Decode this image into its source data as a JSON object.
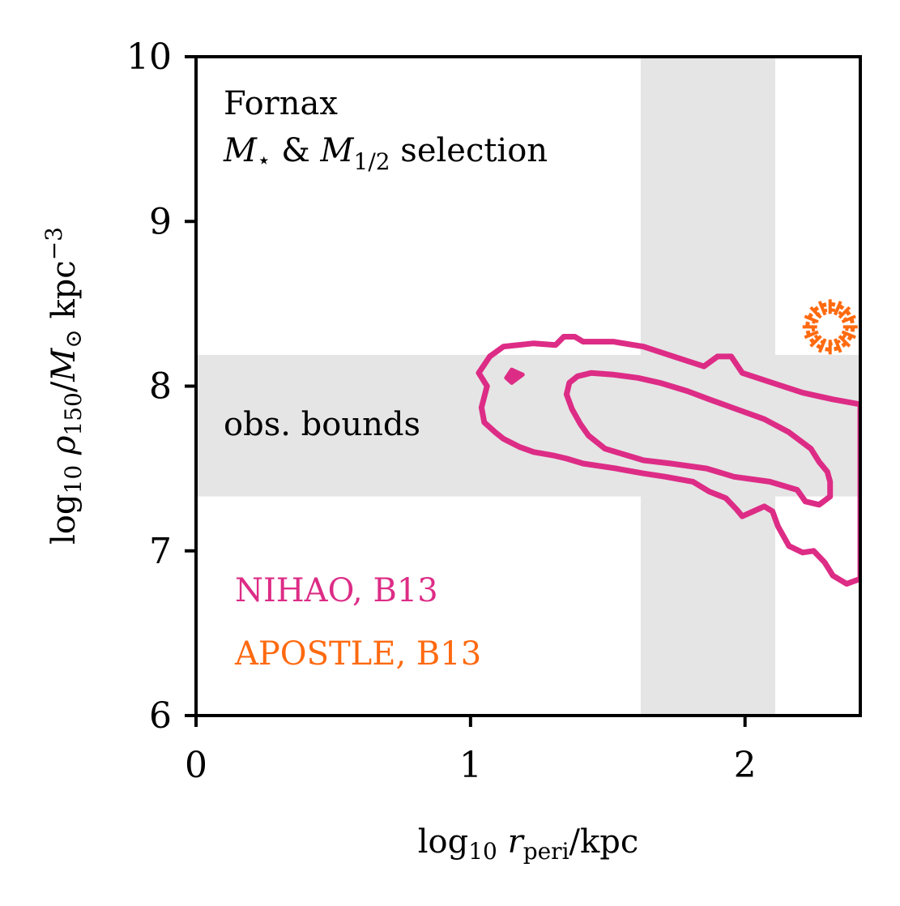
{
  "chart_data": {
    "type": "contour",
    "panel_title": [
      "Fornax"
    ],
    "selection_label": {
      "m1": "M",
      "star": "⋆",
      "amp": " & ",
      "m2": "M",
      "sub": "1/2",
      "rest": " selection"
    },
    "xlabel": {
      "pre": "log",
      "sub": "10",
      "var": "r",
      "varsub": "peri",
      "post": "/kpc"
    },
    "ylabel": {
      "pre": "log",
      "sub": "10",
      "var": "ρ",
      "varsub": "150",
      "mid": "/",
      "m": "M",
      "sun": "⊙",
      "post": " kpc",
      "sup": "−3"
    },
    "xlim": [
      0,
      2.42
    ],
    "ylim": [
      6,
      10
    ],
    "xticks": [
      0,
      1,
      2
    ],
    "xtick_labels": [
      "0",
      "1",
      "2"
    ],
    "yticks": [
      6,
      7,
      8,
      9,
      10
    ],
    "ytick_labels": [
      "6",
      "7",
      "8",
      "9",
      "10"
    ],
    "obs_bounds": {
      "label": "obs. bounds",
      "y_range": [
        7.33,
        8.19
      ],
      "x_range": [
        1.62,
        2.11
      ],
      "color": "#e5e5e5",
      "label_color": "#888888"
    },
    "series": [
      {
        "name": "NIHAO, B13",
        "color": "#dd2c86",
        "contours": [
          [
            [
              1.06,
              8.0
            ],
            [
              1.03,
              8.08
            ],
            [
              1.07,
              8.18
            ],
            [
              1.12,
              8.24
            ],
            [
              1.23,
              8.26
            ],
            [
              1.31,
              8.25
            ],
            [
              1.34,
              8.3
            ],
            [
              1.38,
              8.3
            ],
            [
              1.41,
              8.27
            ],
            [
              1.52,
              8.27
            ],
            [
              1.63,
              8.24
            ],
            [
              1.74,
              8.18
            ],
            [
              1.85,
              8.12
            ],
            [
              1.9,
              8.18
            ],
            [
              1.95,
              8.18
            ],
            [
              1.99,
              8.08
            ],
            [
              2.1,
              8.02
            ],
            [
              2.21,
              7.96
            ],
            [
              2.32,
              7.92
            ],
            [
              2.42,
              7.89
            ],
            [
              2.42,
              6.83
            ],
            [
              2.37,
              6.8
            ],
            [
              2.32,
              6.85
            ],
            [
              2.29,
              6.93
            ],
            [
              2.25,
              7.0
            ],
            [
              2.21,
              6.99
            ],
            [
              2.16,
              7.03
            ],
            [
              2.12,
              7.15
            ],
            [
              2.1,
              7.24
            ],
            [
              2.07,
              7.27
            ],
            [
              2.03,
              7.24
            ],
            [
              1.99,
              7.21
            ],
            [
              1.97,
              7.25
            ],
            [
              1.93,
              7.32
            ],
            [
              1.87,
              7.36
            ],
            [
              1.81,
              7.42
            ],
            [
              1.71,
              7.45
            ],
            [
              1.63,
              7.47
            ],
            [
              1.53,
              7.5
            ],
            [
              1.41,
              7.53
            ],
            [
              1.35,
              7.56
            ],
            [
              1.3,
              7.58
            ],
            [
              1.23,
              7.6
            ],
            [
              1.18,
              7.63
            ],
            [
              1.12,
              7.68
            ],
            [
              1.09,
              7.72
            ],
            [
              1.05,
              7.78
            ],
            [
              1.04,
              7.87
            ],
            [
              1.06,
              8.0
            ]
          ],
          [
            [
              1.36,
              8.02
            ],
            [
              1.39,
              8.06
            ],
            [
              1.44,
              8.08
            ],
            [
              1.52,
              8.07
            ],
            [
              1.61,
              8.05
            ],
            [
              1.69,
              8.02
            ],
            [
              1.79,
              7.97
            ],
            [
              1.87,
              7.92
            ],
            [
              1.97,
              7.86
            ],
            [
              2.07,
              7.8
            ],
            [
              2.16,
              7.72
            ],
            [
              2.24,
              7.62
            ],
            [
              2.27,
              7.54
            ],
            [
              2.3,
              7.48
            ],
            [
              2.31,
              7.42
            ],
            [
              2.31,
              7.33
            ],
            [
              2.27,
              7.28
            ],
            [
              2.22,
              7.3
            ],
            [
              2.19,
              7.37
            ],
            [
              2.09,
              7.42
            ],
            [
              1.96,
              7.45
            ],
            [
              1.86,
              7.5
            ],
            [
              1.73,
              7.53
            ],
            [
              1.63,
              7.55
            ],
            [
              1.57,
              7.58
            ],
            [
              1.49,
              7.62
            ],
            [
              1.43,
              7.7
            ],
            [
              1.4,
              7.77
            ],
            [
              1.37,
              7.86
            ],
            [
              1.35,
              7.95
            ],
            [
              1.36,
              8.02
            ]
          ]
        ],
        "blob": [
          [
            1.13,
            8.05
          ],
          [
            1.15,
            8.1
          ],
          [
            1.19,
            8.07
          ],
          [
            1.15,
            8.02
          ],
          [
            1.13,
            8.05
          ]
        ]
      },
      {
        "name": "APOSTLE, B13",
        "color": "#ff6a10",
        "marker": {
          "type": "dashed-ring",
          "x": 2.31,
          "y": 8.36
        }
      }
    ]
  }
}
